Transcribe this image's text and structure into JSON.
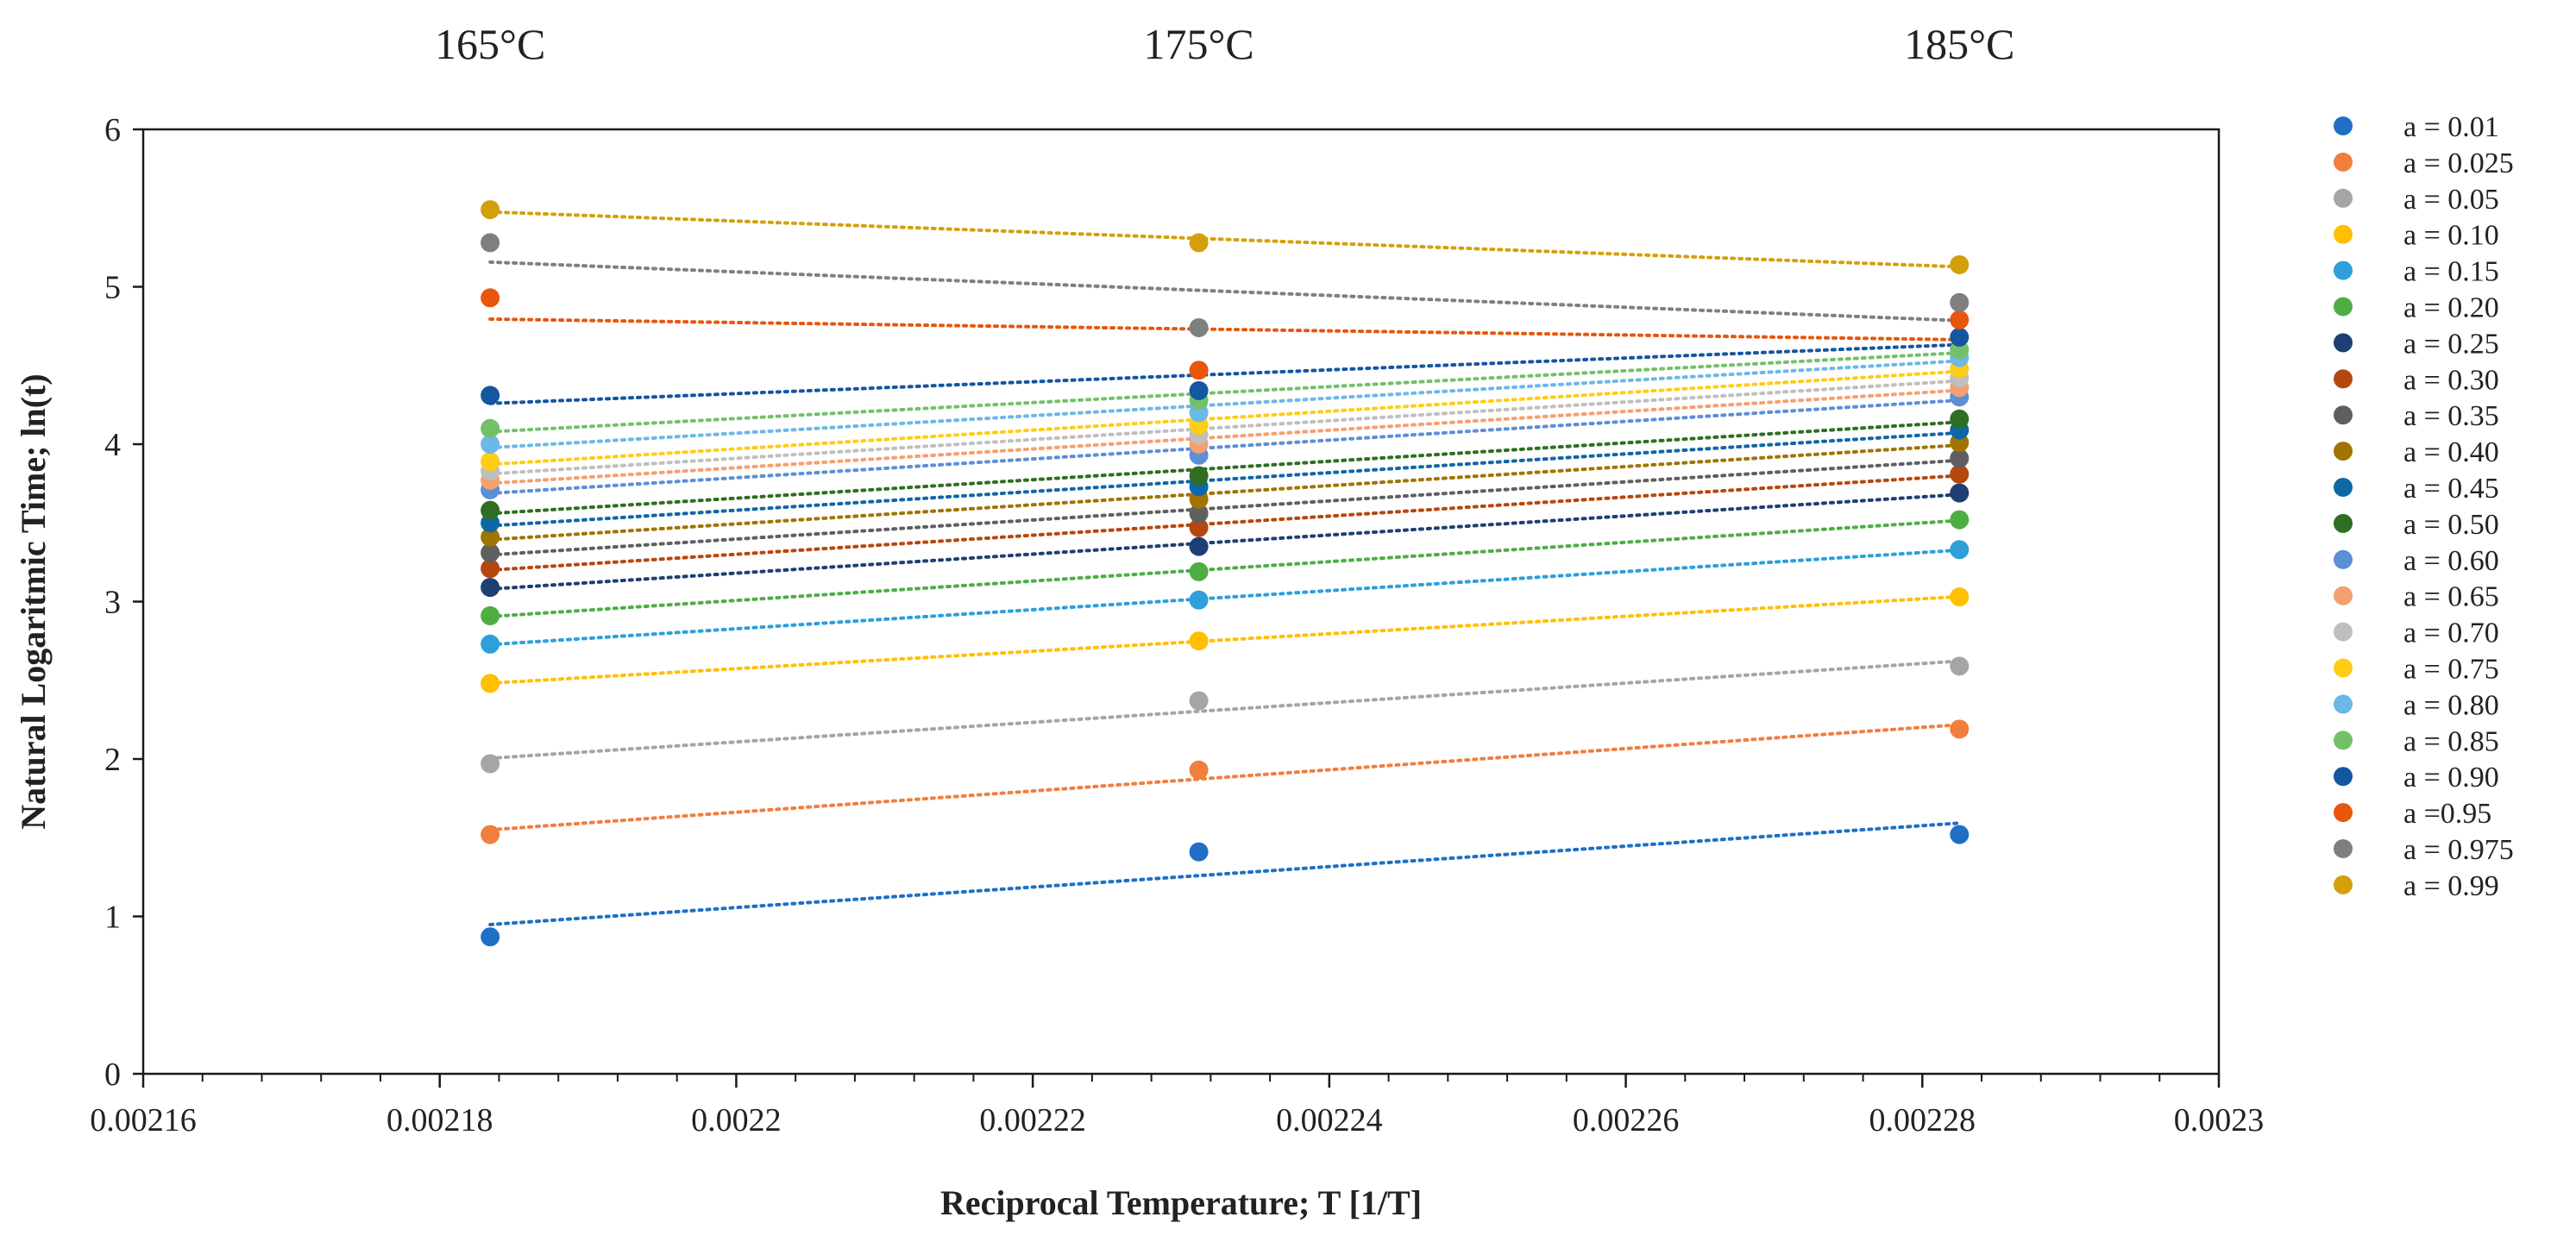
{
  "chart_data": {
    "type": "scatter",
    "title": "",
    "top_labels": [
      {
        "x": 0.0021834,
        "text": "165°C"
      },
      {
        "x": 0.0022312,
        "text": "175°C"
      },
      {
        "x": 0.0022825,
        "text": "185°C"
      }
    ],
    "xlabel": "Reciprocal Temperature; T [1/T]",
    "ylabel": "Natural Logaritmic Time; ln(t)",
    "xlim": [
      0.00216,
      0.0023
    ],
    "ylim": [
      0,
      6
    ],
    "x_ticks": [
      0.00216,
      0.00218,
      0.0022,
      0.00222,
      0.00224,
      0.00226,
      0.00228,
      0.0023
    ],
    "x_tick_labels": [
      "0.00216",
      "0.00218",
      "0.0022",
      "0.00222",
      "0.00224",
      "0.00226",
      "0.00228",
      "0.0023"
    ],
    "y_ticks": [
      0,
      1,
      2,
      3,
      4,
      5,
      6
    ],
    "y_tick_labels": [
      "0",
      "1",
      "2",
      "3",
      "4",
      "5",
      "6"
    ],
    "grid": false,
    "legend_position": "right",
    "trendline_style": "dotted linear",
    "x": [
      0.0021834,
      0.0022312,
      0.0022825
    ],
    "series": [
      {
        "name": "a = 0.01",
        "color": "#1f6fc5",
        "values": [
          0.87,
          1.41,
          1.52
        ]
      },
      {
        "name": "a = 0.025",
        "color": "#f07f3c",
        "values": [
          1.52,
          1.93,
          2.19
        ]
      },
      {
        "name": "a = 0.05",
        "color": "#a5a5a5",
        "values": [
          1.97,
          2.37,
          2.59
        ]
      },
      {
        "name": "a = 0.10",
        "color": "#ffc000",
        "values": [
          2.48,
          2.75,
          3.03
        ]
      },
      {
        "name": "a = 0.15",
        "color": "#2e9fd9",
        "values": [
          2.73,
          3.01,
          3.33
        ]
      },
      {
        "name": "a = 0.20",
        "color": "#4eae44",
        "values": [
          2.91,
          3.19,
          3.52
        ]
      },
      {
        "name": "a = 0.25",
        "color": "#1d3f73",
        "values": [
          3.09,
          3.35,
          3.69
        ]
      },
      {
        "name": "a = 0.30",
        "color": "#b5470f",
        "values": [
          3.21,
          3.47,
          3.81
        ]
      },
      {
        "name": "a = 0.35",
        "color": "#5f5f5f",
        "values": [
          3.31,
          3.56,
          3.91
        ]
      },
      {
        "name": "a = 0.40",
        "color": "#a07400",
        "values": [
          3.41,
          3.65,
          4.01
        ]
      },
      {
        "name": "a = 0.45",
        "color": "#0f67a6",
        "values": [
          3.5,
          3.73,
          4.09
        ]
      },
      {
        "name": "a = 0.50",
        "color": "#2f6e22",
        "values": [
          3.58,
          3.8,
          4.16
        ]
      },
      {
        "name": "a = 0.60",
        "color": "#5b8fd6",
        "values": [
          3.71,
          3.93,
          4.3
        ]
      },
      {
        "name": "a = 0.65",
        "color": "#f4a070",
        "values": [
          3.77,
          4.0,
          4.36
        ]
      },
      {
        "name": "a = 0.70",
        "color": "#bfbfbf",
        "values": [
          3.83,
          4.06,
          4.42
        ]
      },
      {
        "name": "a = 0.75",
        "color": "#ffcd13",
        "values": [
          3.89,
          4.12,
          4.48
        ]
      },
      {
        "name": "a = 0.80",
        "color": "#6cb8e6",
        "values": [
          4.0,
          4.2,
          4.55
        ]
      },
      {
        "name": "a = 0.85",
        "color": "#74c06a",
        "values": [
          4.1,
          4.28,
          4.6
        ]
      },
      {
        "name": "a = 0.90",
        "color": "#1456a0",
        "values": [
          4.31,
          4.34,
          4.68
        ]
      },
      {
        "name": "a =0.95",
        "color": "#e8560c",
        "values": [
          4.93,
          4.47,
          4.79
        ]
      },
      {
        "name": "a = 0.975",
        "color": "#7f7f7f",
        "values": [
          5.28,
          4.74,
          4.9
        ]
      },
      {
        "name": "a = 0.99",
        "color": "#d4a00a",
        "values": [
          5.49,
          5.28,
          5.14
        ]
      }
    ]
  }
}
